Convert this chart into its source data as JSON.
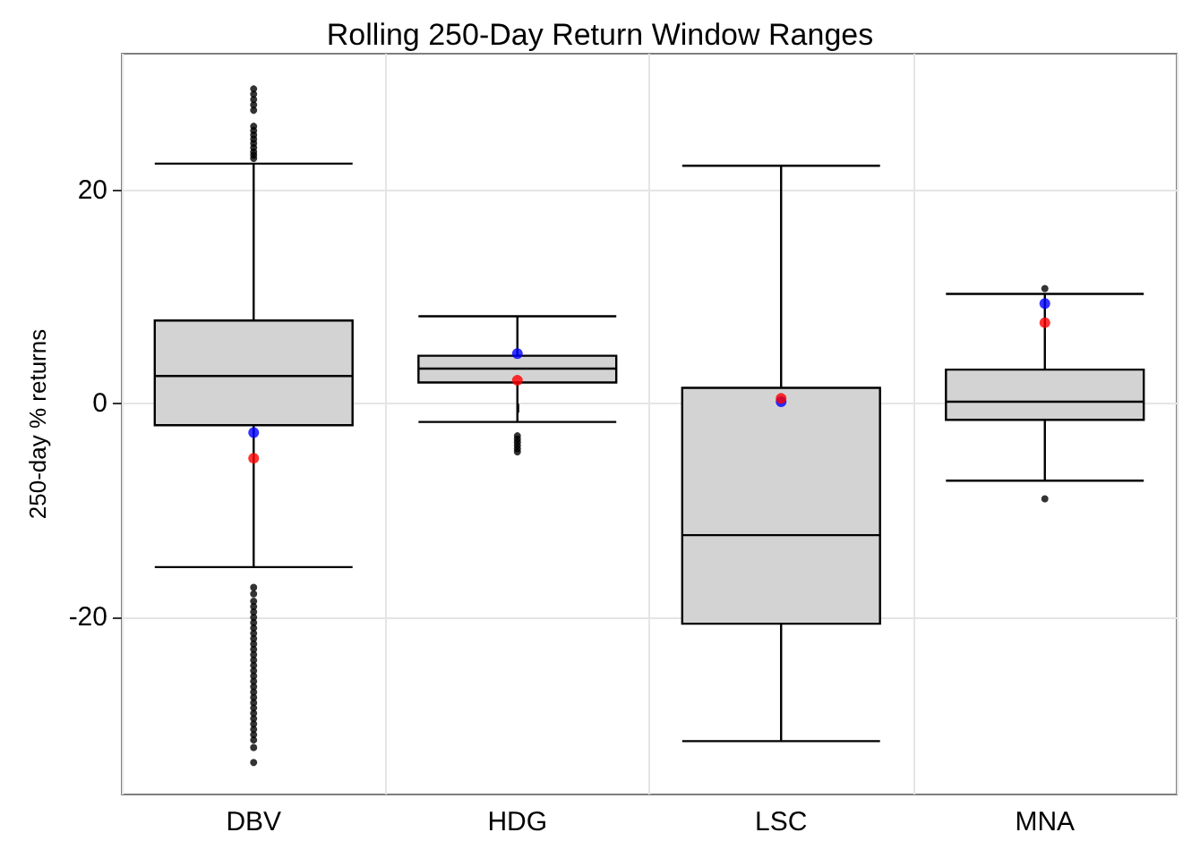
{
  "chart_data": {
    "type": "box",
    "title": "Rolling 250-Day Return Window Ranges",
    "ylabel": "250-day % returns",
    "categories": [
      "DBV",
      "HDG",
      "LSC",
      "MNA"
    ],
    "ylim": [
      -36.6,
      32.8
    ],
    "yticks": [
      -20,
      0,
      20
    ],
    "grid": true,
    "series": [
      {
        "type": "box",
        "color": "#d3d3d3",
        "boxes": [
          {
            "low": -15.3,
            "q1": -2.0,
            "median": 2.6,
            "q3": 7.8,
            "high": 22.5,
            "outliers": [
              23,
              23.3,
              23.6,
              24,
              24.4,
              24.8,
              25.2,
              25.6,
              26,
              27.5,
              28,
              28.5,
              29,
              29.5,
              -17.2,
              -17.8,
              -18.5,
              -19,
              -19.5,
              -20,
              -20.5,
              -21,
              -21.5,
              -22,
              -22.5,
              -23,
              -23.5,
              -24,
              -24.5,
              -25,
              -25.5,
              -26,
              -26.5,
              -27,
              -27.5,
              -28,
              -28.5,
              -29,
              -29.5,
              -30,
              -30.5,
              -31,
              -31.5,
              -32.2,
              -33.6
            ]
          },
          {
            "low": -1.7,
            "q1": 2.0,
            "median": 3.3,
            "q3": 4.5,
            "high": 8.2,
            "outliers": [
              -3.0,
              -3.3,
              -3.6,
              -3.9,
              -4.2,
              -4.5
            ]
          },
          {
            "low": -31.6,
            "q1": -20.6,
            "median": -12.3,
            "q3": 1.5,
            "high": 22.3
          },
          {
            "low": -7.2,
            "q1": -1.5,
            "median": 0.2,
            "q3": 3.2,
            "high": 10.3,
            "outliers": [
              10.8,
              -8.9
            ]
          }
        ]
      },
      {
        "type": "scatter",
        "color": "#ff0000",
        "marker": "circle",
        "x": [
          "DBV",
          "HDG",
          "LSC",
          "MNA"
        ],
        "values": [
          -5.1,
          2.2,
          0.5,
          7.6
        ]
      },
      {
        "type": "scatter",
        "color": "#0000ff",
        "marker": "circle",
        "x": [
          "DBV",
          "HDG",
          "LSC",
          "MNA"
        ],
        "values": [
          -2.7,
          4.7,
          0.2,
          9.4
        ]
      }
    ]
  }
}
